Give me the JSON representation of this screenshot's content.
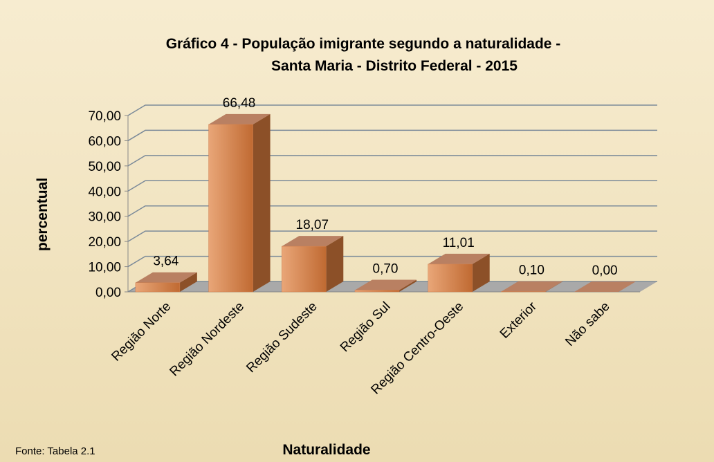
{
  "chart_data": {
    "type": "bar",
    "title": [
      "Gráfico 4 - População imigrante segundo a naturalidade -",
      "Santa Maria - Distrito Federal - 2015"
    ],
    "ylabel": "percentual",
    "xlabel": "Naturalidade",
    "note": "Fonte: Tabela  2.1",
    "categories": [
      "Região Norte",
      "Região Nordeste",
      "Região Sudeste",
      "Região Sul",
      "Região Centro-Oeste",
      "Exterior",
      "Não sabe"
    ],
    "values": [
      3.64,
      66.48,
      18.07,
      0.7,
      11.01,
      0.1,
      0.0
    ],
    "value_labels": [
      "3,64",
      "66,48",
      "18,07",
      "0,70",
      "11,01",
      "0,10",
      "0,00"
    ],
    "color": "#d08050",
    "ylim": [
      0,
      70
    ],
    "yticks": [
      {
        "value": 0,
        "label": "0,00"
      },
      {
        "value": 10,
        "label": "10,00"
      },
      {
        "value": 20,
        "label": "20,00"
      },
      {
        "value": 30,
        "label": "30,00"
      },
      {
        "value": 40,
        "label": "40,00"
      },
      {
        "value": 50,
        "label": "50,00"
      },
      {
        "value": 60,
        "label": "60,00"
      },
      {
        "value": 70,
        "label": "70,00"
      }
    ],
    "grid": true
  }
}
